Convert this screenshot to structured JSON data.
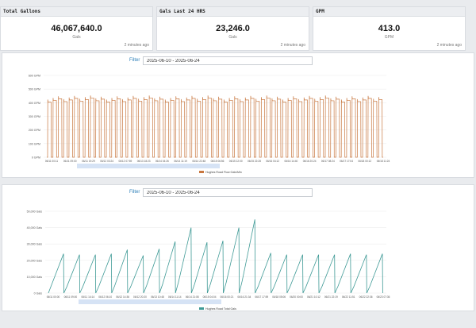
{
  "cards": [
    {
      "title": "Total Gallons",
      "value": "46,067,640.0",
      "unit": "Gals",
      "updated": "2 minutes ago"
    },
    {
      "title": "Gals Last 24 HRS",
      "value": "23,246.0",
      "unit": "Gals",
      "updated": "2 minutes ago"
    },
    {
      "title": "GPM",
      "value": "413.0",
      "unit": "GPM",
      "updated": "2 minutes ago"
    }
  ],
  "filter": {
    "label": "Filter",
    "value": "2025-06-10 - 2025-06-24"
  },
  "colors": {
    "flow": "#c8773f",
    "total": "#3f9a96",
    "navigator": "#d6e3f5"
  },
  "chart_data": [
    {
      "type": "line",
      "legend": [
        "Hughes Road Flow Gals/Min"
      ],
      "legend_position": "bottom-center",
      "grid": true,
      "ylim": [
        0,
        600
      ],
      "yticks": [
        "0 GPM",
        "100 GPM",
        "200 GPM",
        "300 GPM",
        "400 GPM",
        "500 GPM",
        "600 GPM"
      ],
      "xticks": [
        "06/11 00:11",
        "06/11 09:00",
        "06/11 19:29",
        "06/12 03:24",
        "06/12 07:59",
        "06/13 18:23",
        "06/14 04:26",
        "06/14 11:19",
        "06/14 22:48",
        "06/15 06:56",
        "06/15 12:00",
        "06/15 22:28",
        "06/16 04:12",
        "06/16 14:40",
        "06/16 20:24",
        "06/17 08:24",
        "06/17 17:04",
        "06/18 00:12",
        "06/18 11:24"
      ],
      "series": [
        {
          "name": "Hughes Road Flow Gals/Min",
          "peak": 420,
          "cycles": 63
        }
      ]
    },
    {
      "type": "line",
      "legend": [
        "Hughes Road Total Gals"
      ],
      "legend_position": "bottom-center",
      "grid": true,
      "ylim": [
        0,
        50000
      ],
      "yticks": [
        "0 Gals",
        "10,000 Gals",
        "20,000 Gals",
        "30,000 Gals",
        "40,000 Gals",
        "50,000 Gals"
      ],
      "xticks": [
        "06/11 00:00",
        "06/11 09:00",
        "06/11 14:14",
        "06/12 06:10",
        "06/12 14:36",
        "06/12 20:20",
        "06/13 10:48",
        "06/14 11:14",
        "06/14 21:08",
        "06/15 04:04",
        "06/16 00:21",
        "06/16 21:34",
        "06/17 17:59",
        "06/18 05:06",
        "06/20 00:00",
        "06/21 10:12",
        "06/21 22:19",
        "06/22 11:51",
        "06/22 22:36",
        "06/23 07:36"
      ],
      "series": [
        {
          "name": "Hughes Road Total Gals",
          "peaks": [
            24000,
            23500,
            23500,
            24000,
            26500,
            23000,
            27000,
            31500,
            40000,
            31000,
            32000,
            40000,
            45000,
            24500,
            23500,
            23500,
            23500,
            23500,
            24000,
            23500,
            24000
          ]
        }
      ]
    }
  ]
}
